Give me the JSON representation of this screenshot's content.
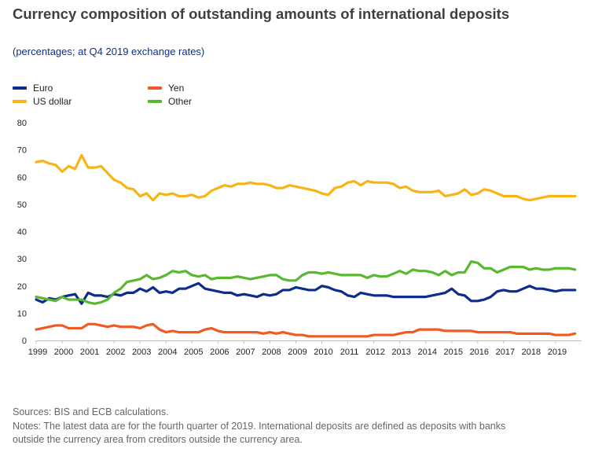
{
  "page": {
    "title": "Currency composition of outstanding amounts of international deposits",
    "subtitle": "(percentages; at Q4 2019 exchange rates)",
    "sources": "Sources: BIS and ECB calculations.",
    "notes_line1": "Notes: The latest data are for the fourth quarter of 2019. International deposits are defined as deposits with banks",
    "notes_line2": "outside the currency area from creditors outside the currency area."
  },
  "chart_data": {
    "type": "line",
    "ylim": [
      0,
      80
    ],
    "yticks": [
      0,
      10,
      20,
      30,
      40,
      50,
      60,
      70,
      80
    ],
    "xlim": [
      1999.0,
      2020.0
    ],
    "xticks": [
      1999,
      2000,
      2001,
      2002,
      2003,
      2004,
      2005,
      2006,
      2007,
      2008,
      2009,
      2010,
      2011,
      2012,
      2013,
      2014,
      2015,
      2016,
      2017,
      2018,
      2019
    ],
    "grid": false,
    "legend_position": "top-left",
    "x": [
      1999.0,
      1999.25,
      1999.5,
      1999.75,
      2000.0,
      2000.25,
      2000.5,
      2000.75,
      2001.0,
      2001.25,
      2001.5,
      2001.75,
      2002.0,
      2002.25,
      2002.5,
      2002.75,
      2003.0,
      2003.25,
      2003.5,
      2003.75,
      2004.0,
      2004.25,
      2004.5,
      2004.75,
      2005.0,
      2005.25,
      2005.5,
      2005.75,
      2006.0,
      2006.25,
      2006.5,
      2006.75,
      2007.0,
      2007.25,
      2007.5,
      2007.75,
      2008.0,
      2008.25,
      2008.5,
      2008.75,
      2009.0,
      2009.25,
      2009.5,
      2009.75,
      2010.0,
      2010.25,
      2010.5,
      2010.75,
      2011.0,
      2011.25,
      2011.5,
      2011.75,
      2012.0,
      2012.25,
      2012.5,
      2012.75,
      2013.0,
      2013.25,
      2013.5,
      2013.75,
      2014.0,
      2014.25,
      2014.5,
      2014.75,
      2015.0,
      2015.25,
      2015.5,
      2015.75,
      2016.0,
      2016.25,
      2016.5,
      2016.75,
      2017.0,
      2017.25,
      2017.5,
      2017.75,
      2018.0,
      2018.25,
      2018.5,
      2018.75,
      2019.0,
      2019.25,
      2019.5,
      2019.75
    ],
    "series": [
      {
        "name": "Euro",
        "color": "#0d2c8c",
        "values": [
          15,
          14,
          15.5,
          15,
          16,
          16.5,
          17,
          13.5,
          17.5,
          16.5,
          16.5,
          16,
          17,
          16.5,
          17.5,
          17.5,
          19,
          18,
          19.5,
          17.5,
          18,
          17.5,
          19,
          19,
          20,
          21,
          19,
          18.5,
          18,
          17.5,
          17.5,
          16.5,
          17,
          16.5,
          16,
          17,
          16.5,
          17,
          18.5,
          18.5,
          19.5,
          19,
          18.5,
          18.5,
          20,
          19.5,
          18.5,
          18,
          16.5,
          16,
          17.5,
          17,
          16.5,
          16.5,
          16.5,
          16,
          16,
          16,
          16,
          16,
          16,
          16.5,
          17,
          17.5,
          19,
          17,
          16.5,
          14.5,
          14.5,
          15,
          16,
          18,
          18.5,
          18,
          18,
          19,
          20,
          19,
          19,
          18.5,
          18,
          18.5,
          18.5,
          18.5
        ]
      },
      {
        "name": "Yen",
        "color": "#f15a22",
        "values": [
          4,
          4.5,
          5,
          5.5,
          5.5,
          4.5,
          4.5,
          4.5,
          6,
          6,
          5.5,
          5,
          5.5,
          5,
          5,
          5,
          4.5,
          5.5,
          6,
          4,
          3,
          3.5,
          3,
          3,
          3,
          3,
          4,
          4.5,
          3.5,
          3,
          3,
          3,
          3,
          3,
          3,
          2.5,
          3,
          2.5,
          3,
          2.5,
          2,
          2,
          1.5,
          1.5,
          1.5,
          1.5,
          1.5,
          1.5,
          1.5,
          1.5,
          1.5,
          1.5,
          2,
          2,
          2,
          2,
          2.5,
          3,
          3,
          4,
          4,
          4,
          4,
          3.5,
          3.5,
          3.5,
          3.5,
          3.5,
          3,
          3,
          3,
          3,
          3,
          3,
          2.5,
          2.5,
          2.5,
          2.5,
          2.5,
          2.5,
          2,
          2,
          2,
          2.5
        ]
      },
      {
        "name": "US dollar",
        "color": "#f7b515",
        "values": [
          65.5,
          66,
          65,
          64.5,
          62,
          64,
          63,
          68,
          63.5,
          63.5,
          64,
          61.5,
          59,
          58,
          56,
          55.5,
          53,
          54,
          51.5,
          54,
          53.5,
          54,
          53,
          53,
          53.5,
          52.5,
          53,
          55,
          56,
          57,
          56.5,
          57.5,
          57.5,
          58,
          57.5,
          57.5,
          57,
          56,
          56,
          57,
          56.5,
          56,
          55.5,
          55,
          54,
          53.5,
          56,
          56.5,
          58,
          58.5,
          57,
          58.5,
          58,
          58,
          58,
          57.5,
          56,
          56.5,
          55,
          54.5,
          54.5,
          54.5,
          55,
          53,
          53.5,
          54,
          55.5,
          53.5,
          54,
          55.5,
          55,
          54,
          53,
          53,
          53,
          52,
          51.5,
          52,
          52.5,
          53,
          53,
          53,
          53,
          53
        ]
      },
      {
        "name": "Other",
        "color": "#58b82e",
        "values": [
          16,
          15.5,
          15,
          14.5,
          16,
          15,
          15,
          15,
          14,
          13.5,
          14,
          15,
          17.5,
          19,
          21.5,
          22,
          22.5,
          24,
          22.5,
          23,
          24,
          25.5,
          25,
          25.5,
          24,
          23.5,
          24,
          22.5,
          23,
          23,
          23,
          23.5,
          23,
          22.5,
          23,
          23.5,
          24,
          24,
          22.5,
          22,
          22,
          24,
          25,
          25,
          24.5,
          25,
          24.5,
          24,
          24,
          24,
          24,
          23,
          24,
          23.5,
          23.5,
          24.5,
          25.5,
          24.5,
          26,
          25.5,
          25.5,
          25,
          24,
          25.5,
          24,
          25,
          25,
          29,
          28.5,
          26.5,
          26.5,
          25,
          26,
          27,
          27,
          27,
          26,
          26.5,
          26,
          26,
          26.5,
          26.5,
          26.5,
          26
        ]
      }
    ]
  }
}
